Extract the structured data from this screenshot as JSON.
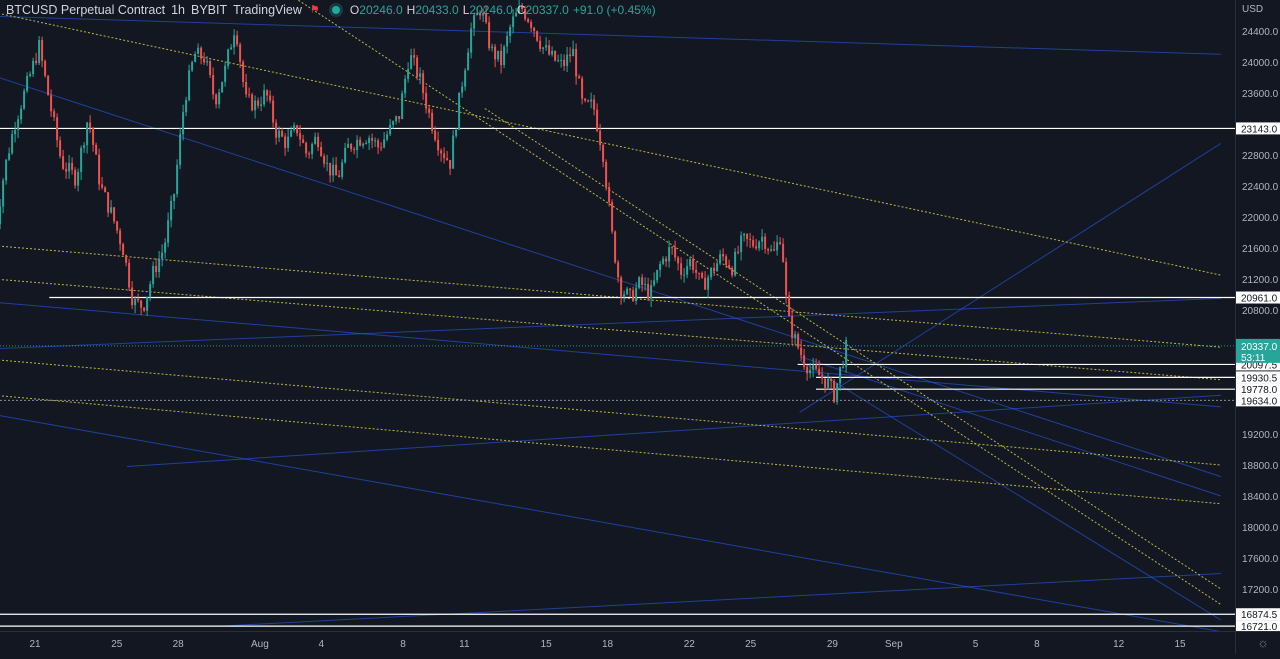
{
  "header": {
    "symbol_name": "BTCUSD Perpetual Contract",
    "interval": "1h",
    "exchange": "BYBIT",
    "source": "TradingView",
    "ohlc": {
      "o_label": "O",
      "o_value": "20246.0",
      "h_label": "H",
      "h_value": "20433.0",
      "l_label": "L",
      "l_value": "20246.0",
      "c_label": "C",
      "c_value": "20337.0",
      "change": "+91.0 (+0.45%)"
    }
  },
  "currency_label": "USD",
  "colors": {
    "background": "#131722",
    "up": "#26a69a",
    "down": "#ef5350",
    "trend_blue": "#2962ff",
    "trend_yellow": "#d9d24a",
    "level_line": "#ffffff"
  },
  "icons": {
    "flag": "flag-icon",
    "live": "live-dot-icon",
    "settings": "gear-icon"
  },
  "chart_data": {
    "type": "candlestick",
    "symbol": "BTCUSD Perpetual Contract",
    "interval": "1h",
    "ylim": [
      16700,
      24900
    ],
    "y_ticks": [
      17200,
      17600,
      18000,
      18400,
      18800,
      19200,
      20800,
      21200,
      21600,
      22000,
      22400,
      22800,
      23600,
      24000,
      24400
    ],
    "x_ticks": [
      {
        "label": "21",
        "day": 21
      },
      {
        "label": "25",
        "day": 25
      },
      {
        "label": "28",
        "day": 28
      },
      {
        "label": "Aug",
        "day": 32
      },
      {
        "label": "4",
        "day": 35
      },
      {
        "label": "8",
        "day": 39
      },
      {
        "label": "11",
        "day": 42
      },
      {
        "label": "15",
        "day": 46
      },
      {
        "label": "18",
        "day": 49
      },
      {
        "label": "22",
        "day": 53
      },
      {
        "label": "25",
        "day": 56
      },
      {
        "label": "29",
        "day": 60
      },
      {
        "label": "Sep",
        "day": 63
      },
      {
        "label": "5",
        "day": 67
      },
      {
        "label": "8",
        "day": 70
      },
      {
        "label": "12",
        "day": 74
      },
      {
        "label": "15",
        "day": 77
      }
    ],
    "last_price": {
      "value": "20337.0",
      "countdown": "53:11",
      "y": 20337
    },
    "horizontal_levels": [
      {
        "label": "23143.0",
        "y": 23143,
        "day_start": 0
      },
      {
        "label": "20961.0",
        "y": 20961,
        "day_start": 21.7
      },
      {
        "label": "20097.5",
        "y": 20097.5,
        "day_start": 58.3
      },
      {
        "label": "19930.5",
        "y": 19930.5,
        "day_start": 59.2
      },
      {
        "label": "19778.0",
        "y": 19778,
        "day_start": 59.2
      },
      {
        "label": "19634.0",
        "y": 19634,
        "day_start": 0,
        "dotted": true
      },
      {
        "label": "16874.5",
        "y": 16874.5,
        "day_start": 0
      },
      {
        "label": "16721.0",
        "y": 16721,
        "day_start": 0
      }
    ],
    "price_path": [
      [
        19.0,
        21700
      ],
      [
        19.5,
        22600
      ],
      [
        20.0,
        23200
      ],
      [
        20.6,
        23700
      ],
      [
        21.2,
        24200
      ],
      [
        21.7,
        23500
      ],
      [
        22.3,
        22700
      ],
      [
        23.0,
        22500
      ],
      [
        23.6,
        23300
      ],
      [
        24.2,
        22400
      ],
      [
        24.8,
        22000
      ],
      [
        25.3,
        21600
      ],
      [
        25.8,
        20900
      ],
      [
        26.3,
        20850
      ],
      [
        26.8,
        21300
      ],
      [
        27.3,
        21600
      ],
      [
        27.8,
        22300
      ],
      [
        28.3,
        23500
      ],
      [
        28.8,
        24100
      ],
      [
        29.3,
        24050
      ],
      [
        29.8,
        23500
      ],
      [
        30.3,
        23900
      ],
      [
        30.8,
        24500
      ],
      [
        31.3,
        23500
      ],
      [
        31.8,
        23450
      ],
      [
        32.3,
        23600
      ],
      [
        32.8,
        23100
      ],
      [
        33.3,
        22950
      ],
      [
        33.8,
        23150
      ],
      [
        34.3,
        22800
      ],
      [
        34.8,
        23050
      ],
      [
        35.3,
        22650
      ],
      [
        35.8,
        22500
      ],
      [
        36.3,
        22900
      ],
      [
        36.8,
        23000
      ],
      [
        37.3,
        23050
      ],
      [
        37.8,
        22900
      ],
      [
        38.3,
        23100
      ],
      [
        38.8,
        23300
      ],
      [
        39.3,
        24100
      ],
      [
        39.8,
        23800
      ],
      [
        40.3,
        23300
      ],
      [
        40.8,
        22900
      ],
      [
        41.3,
        22700
      ],
      [
        41.8,
        23600
      ],
      [
        42.3,
        24400
      ],
      [
        42.8,
        24700
      ],
      [
        43.3,
        24150
      ],
      [
        43.8,
        24000
      ],
      [
        44.3,
        24500
      ],
      [
        44.8,
        24700
      ],
      [
        45.3,
        24500
      ],
      [
        45.8,
        24200
      ],
      [
        46.3,
        24050
      ],
      [
        46.8,
        23950
      ],
      [
        47.3,
        24150
      ],
      [
        47.8,
        23400
      ],
      [
        48.3,
        23450
      ],
      [
        48.8,
        22800
      ],
      [
        49.2,
        21800
      ],
      [
        49.6,
        21100
      ],
      [
        50.1,
        20950
      ],
      [
        50.6,
        21150
      ],
      [
        51.1,
        21000
      ],
      [
        51.6,
        21400
      ],
      [
        52.1,
        21600
      ],
      [
        52.6,
        21300
      ],
      [
        53.1,
        21450
      ],
      [
        53.6,
        21100
      ],
      [
        54.1,
        21300
      ],
      [
        54.6,
        21500
      ],
      [
        55.1,
        21350
      ],
      [
        55.6,
        21700
      ],
      [
        56.1,
        21650
      ],
      [
        56.6,
        21750
      ],
      [
        57.1,
        21500
      ],
      [
        57.5,
        21800
      ],
      [
        57.8,
        20700
      ],
      [
        58.2,
        20400
      ],
      [
        58.6,
        20150
      ],
      [
        59.0,
        20000
      ],
      [
        59.4,
        19950
      ],
      [
        59.8,
        19850
      ],
      [
        60.1,
        19700
      ],
      [
        60.4,
        20050
      ],
      [
        60.7,
        20337
      ]
    ],
    "trend_lines": [
      {
        "color": "blue",
        "style": "solid",
        "p1": [
          19.0,
          24590
        ],
        "p2": [
          79.0,
          24100
        ]
      },
      {
        "color": "blue",
        "style": "solid",
        "p1": [
          19.0,
          23820
        ],
        "p2": [
          79.0,
          18650
        ]
      },
      {
        "color": "blue",
        "style": "solid",
        "p1": [
          19.0,
          20900
        ],
        "p2": [
          79.0,
          19550
        ]
      },
      {
        "color": "blue",
        "style": "solid",
        "p1": [
          19.0,
          20300
        ],
        "p2": [
          79.0,
          20950
        ]
      },
      {
        "color": "blue",
        "style": "solid",
        "p1": [
          19.0,
          19450
        ],
        "p2": [
          79.0,
          16650
        ]
      },
      {
        "color": "blue",
        "style": "solid",
        "p1": [
          25.5,
          18780
        ],
        "p2": [
          79.0,
          19700
        ]
      },
      {
        "color": "blue",
        "style": "solid",
        "p1": [
          58.4,
          19480
        ],
        "p2": [
          79.0,
          22950
        ]
      },
      {
        "color": "blue",
        "style": "solid",
        "p1": [
          58.4,
          20200
        ],
        "p2": [
          79.0,
          18400
        ]
      },
      {
        "color": "blue",
        "style": "solid",
        "p1": [
          58.4,
          20150
        ],
        "p2": [
          79.0,
          16800
        ]
      },
      {
        "color": "blue",
        "style": "solid",
        "p1": [
          30.0,
          16720
        ],
        "p2": [
          79.0,
          17400
        ]
      },
      {
        "color": "yellow",
        "style": "dotted",
        "p1": [
          19.0,
          24640
        ],
        "p2": [
          79.0,
          21250
        ]
      },
      {
        "color": "yellow",
        "style": "dotted",
        "p1": [
          19.0,
          21630
        ],
        "p2": [
          79.0,
          20320
        ]
      },
      {
        "color": "yellow",
        "style": "dotted",
        "p1": [
          19.0,
          21200
        ],
        "p2": [
          79.0,
          19900
        ]
      },
      {
        "color": "yellow",
        "style": "dotted",
        "p1": [
          19.0,
          20160
        ],
        "p2": [
          79.0,
          18800
        ]
      },
      {
        "color": "yellow",
        "style": "dotted",
        "p1": [
          19.0,
          19700
        ],
        "p2": [
          79.0,
          18300
        ]
      },
      {
        "color": "yellow",
        "style": "dotted",
        "p1": [
          27.5,
          25900
        ],
        "p2": [
          79.0,
          17000
        ]
      },
      {
        "color": "yellow",
        "style": "dotted",
        "p1": [
          43.0,
          23400
        ],
        "p2": [
          79.0,
          17200
        ]
      }
    ]
  }
}
